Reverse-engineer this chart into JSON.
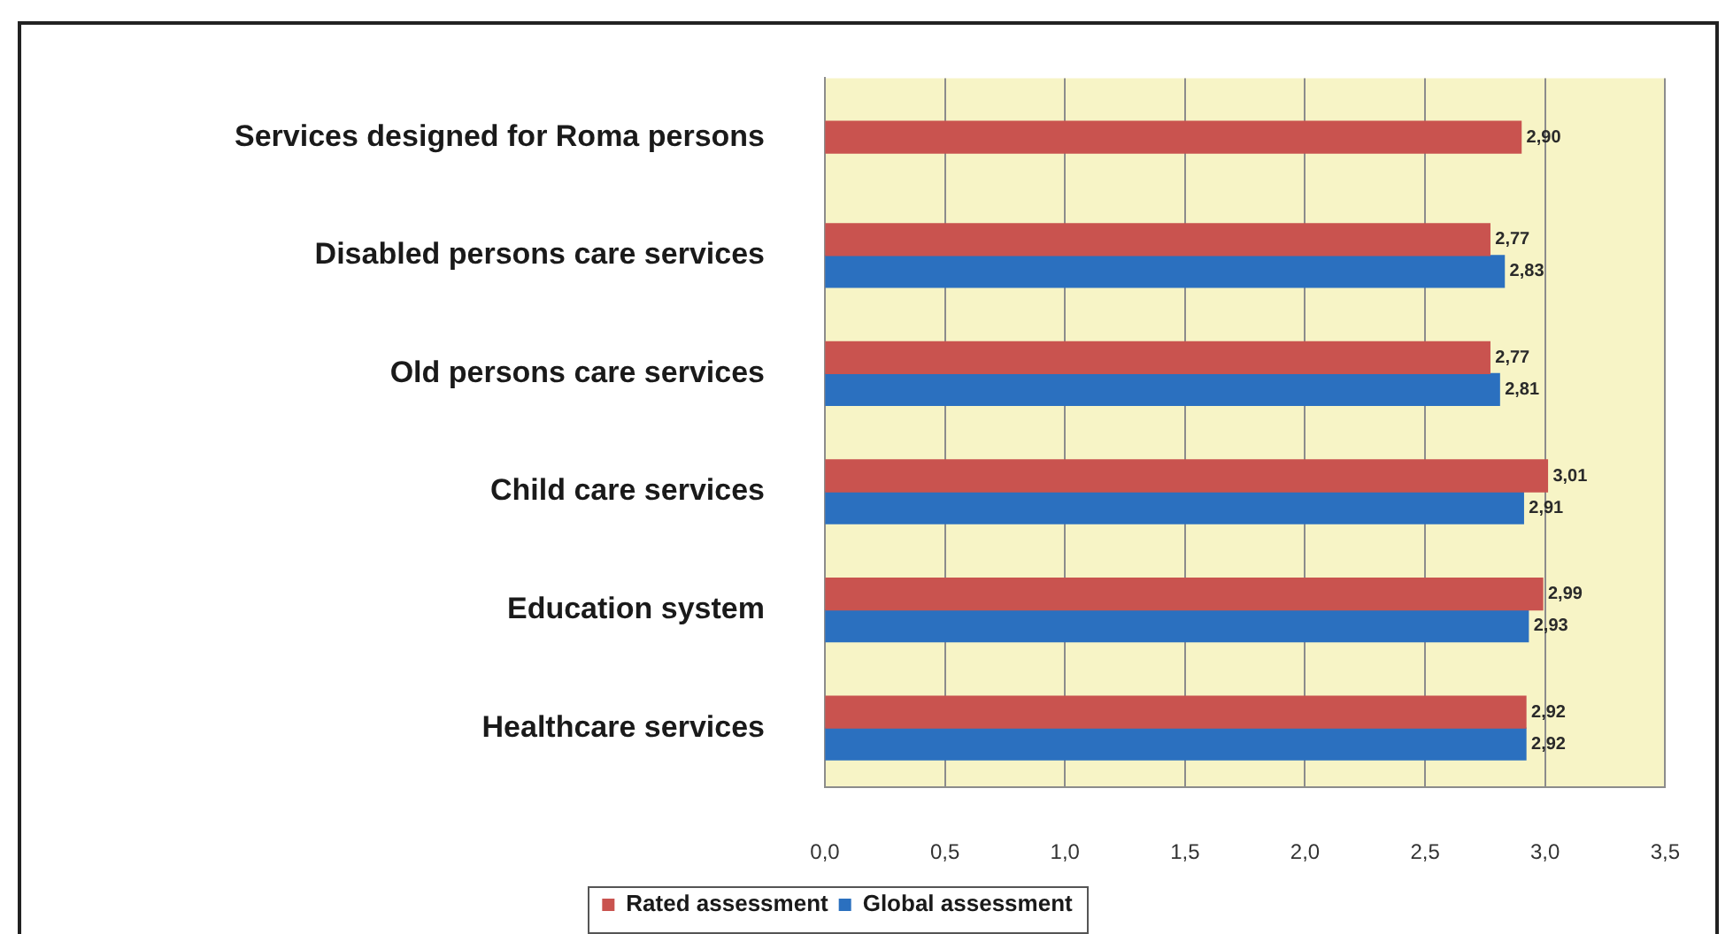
{
  "chart_data": {
    "type": "bar",
    "orientation": "horizontal",
    "categories": [
      "Services designed for Roma persons",
      "Disabled persons care services",
      "Old persons care services",
      "Child care services",
      "Education system",
      "Healthcare services"
    ],
    "series": [
      {
        "name": "Rated assessment",
        "color": "#c9534f",
        "values": [
          2.9,
          2.77,
          2.77,
          3.01,
          2.99,
          2.92
        ],
        "value_labels": [
          "2,90",
          "2,77",
          "2,77",
          "3,01",
          "2,99",
          "2,92"
        ]
      },
      {
        "name": "Global assessment",
        "color": "#2b70bf",
        "values": [
          null,
          2.83,
          2.81,
          2.91,
          2.93,
          2.92
        ],
        "value_labels": [
          null,
          "2,83",
          "2,81",
          "2,91",
          "2,93",
          "2,92"
        ]
      }
    ],
    "xlim": [
      0,
      3.5
    ],
    "xticks": [
      {
        "value": 0,
        "label": "0,0"
      },
      {
        "value": 0.5,
        "label": "0,5"
      },
      {
        "value": 1,
        "label": "1,0"
      },
      {
        "value": 1.5,
        "label": "1,5"
      },
      {
        "value": 2,
        "label": "2,0"
      },
      {
        "value": 2.5,
        "label": "2,5"
      },
      {
        "value": 3,
        "label": "3,0"
      },
      {
        "value": 3.5,
        "label": "3,5"
      }
    ],
    "grid": "x",
    "legend": "bottom"
  }
}
